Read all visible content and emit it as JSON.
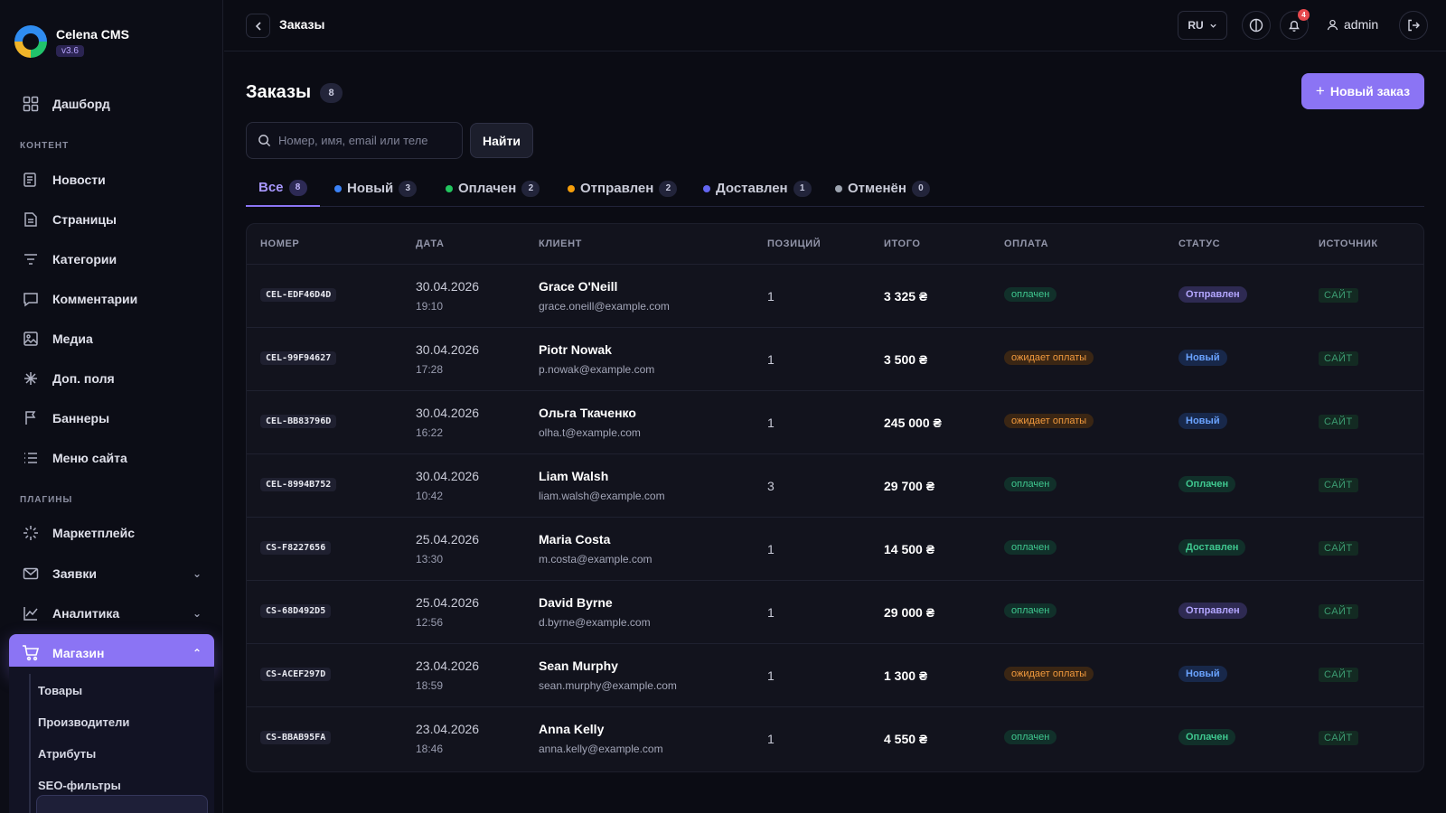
{
  "brand": {
    "name": "Celena CMS",
    "version": "v3.6"
  },
  "sidebar": {
    "dashboard": "Дашборд",
    "section_content": "КОНТЕНТ",
    "content_items": [
      "Новости",
      "Страницы",
      "Категории",
      "Комментарии",
      "Медиа",
      "Доп. поля",
      "Баннеры",
      "Меню сайта"
    ],
    "section_plugins": "ПЛАГИНЫ",
    "plugin_items": [
      "Маркетплейс",
      "Заявки",
      "Аналитика",
      "Магазин"
    ],
    "shop_submenu": [
      "Товары",
      "Производители",
      "Атрибуты",
      "SEO-фильтры"
    ]
  },
  "header": {
    "breadcrumb": "Заказы",
    "lang": "RU",
    "notifications": "4",
    "user": "admin"
  },
  "page": {
    "title": "Заказы",
    "count": "8",
    "new_button": "Новый заказ",
    "search_placeholder": "Номер, имя, email или теле",
    "find_button": "Найти"
  },
  "tabs": [
    {
      "label": "Все",
      "count": "8",
      "color": ""
    },
    {
      "label": "Новый",
      "count": "3",
      "color": "#3b82f6"
    },
    {
      "label": "Оплачен",
      "count": "2",
      "color": "#22c55e"
    },
    {
      "label": "Отправлен",
      "count": "2",
      "color": "#f59e0b"
    },
    {
      "label": "Доставлен",
      "count": "1",
      "color": "#6366f1"
    },
    {
      "label": "Отменён",
      "count": "0",
      "color": "#9ca3af"
    }
  ],
  "table": {
    "headers": [
      "НОМЕР",
      "ДАТА",
      "КЛИЕНТ",
      "ПОЗИЦИЙ",
      "ИТОГО",
      "ОПЛАТА",
      "СТАТУС",
      "ИСТОЧНИК"
    ],
    "rows": [
      {
        "id": "CEL-EDF46D4D",
        "date": "30.04.2026",
        "time": "19:10",
        "name": "Grace O'Neill",
        "email": "grace.oneill@example.com",
        "qty": "1",
        "total": "3 325 ₴",
        "payment": "оплачен",
        "status": "Отправлен",
        "source": "САЙТ"
      },
      {
        "id": "CEL-99F94627",
        "date": "30.04.2026",
        "time": "17:28",
        "name": "Piotr Nowak",
        "email": "p.nowak@example.com",
        "qty": "1",
        "total": "3 500 ₴",
        "payment": "ожидает оплаты",
        "status": "Новый",
        "source": "САЙТ"
      },
      {
        "id": "CEL-BB83796D",
        "date": "30.04.2026",
        "time": "16:22",
        "name": "Ольга Ткаченко",
        "email": "olha.t@example.com",
        "qty": "1",
        "total": "245 000 ₴",
        "payment": "ожидает оплаты",
        "status": "Новый",
        "source": "САЙТ"
      },
      {
        "id": "CEL-8994B752",
        "date": "30.04.2026",
        "time": "10:42",
        "name": "Liam Walsh",
        "email": "liam.walsh@example.com",
        "qty": "3",
        "total": "29 700 ₴",
        "payment": "оплачен",
        "status": "Оплачен",
        "source": "САЙТ"
      },
      {
        "id": "CS-F8227656",
        "date": "25.04.2026",
        "time": "13:30",
        "name": "Maria Costa",
        "email": "m.costa@example.com",
        "qty": "1",
        "total": "14 500 ₴",
        "payment": "оплачен",
        "status": "Доставлен",
        "source": "САЙТ"
      },
      {
        "id": "CS-68D492D5",
        "date": "25.04.2026",
        "time": "12:56",
        "name": "David Byrne",
        "email": "d.byrne@example.com",
        "qty": "1",
        "total": "29 000 ₴",
        "payment": "оплачен",
        "status": "Отправлен",
        "source": "САЙТ"
      },
      {
        "id": "CS-ACEF297D",
        "date": "23.04.2026",
        "time": "18:59",
        "name": "Sean Murphy",
        "email": "sean.murphy@example.com",
        "qty": "1",
        "total": "1 300 ₴",
        "payment": "ожидает оплаты",
        "status": "Новый",
        "source": "САЙТ"
      },
      {
        "id": "CS-BBAB95FA",
        "date": "23.04.2026",
        "time": "18:46",
        "name": "Anna Kelly",
        "email": "anna.kelly@example.com",
        "qty": "1",
        "total": "4 550 ₴",
        "payment": "оплачен",
        "status": "Оплачен",
        "source": "САЙТ"
      }
    ]
  },
  "colors": {
    "accent": "#8b74f4",
    "background": "#0b0c14"
  }
}
